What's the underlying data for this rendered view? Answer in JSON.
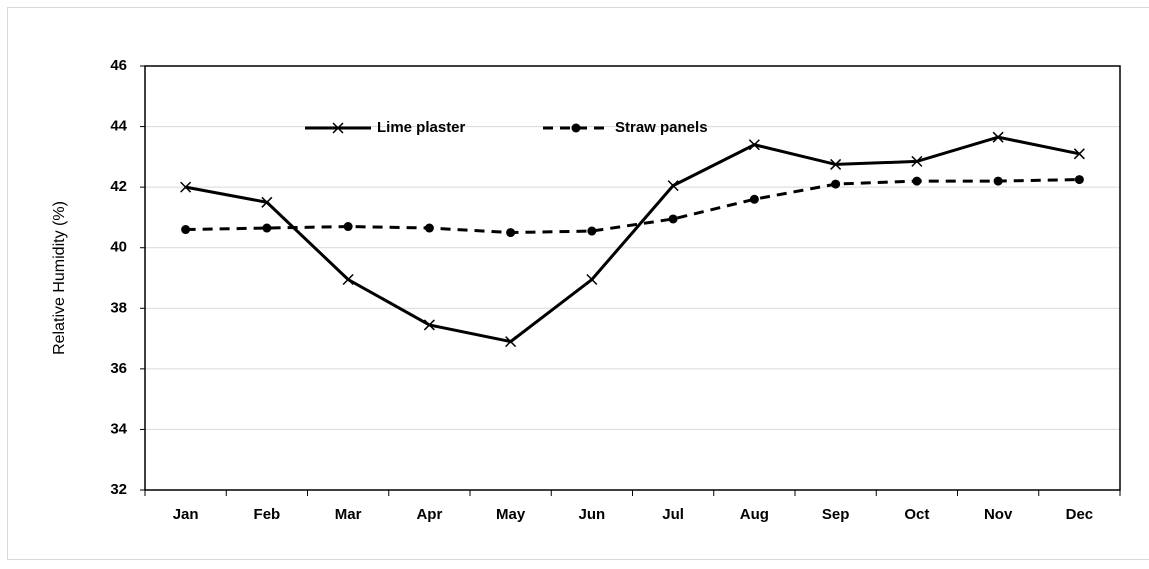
{
  "chart_data": {
    "type": "line",
    "y_label": "Relative Humidity (%)",
    "categories": [
      "Jan",
      "Feb",
      "Mar",
      "Apr",
      "May",
      "Jun",
      "Jul",
      "Aug",
      "Sep",
      "Oct",
      "Nov",
      "Dec"
    ],
    "series": [
      {
        "name": "Lime plaster",
        "color": "#000000",
        "linestyle": "solid",
        "marker": "x",
        "values": [
          42.0,
          41.5,
          38.95,
          37.45,
          36.9,
          38.95,
          42.05,
          43.4,
          42.75,
          42.85,
          43.65,
          43.1
        ]
      },
      {
        "name": "Straw panels",
        "color": "#000000",
        "linestyle": "dashed",
        "marker": "circle",
        "values": [
          40.6,
          40.65,
          40.7,
          40.65,
          40.5,
          40.55,
          40.95,
          41.6,
          42.1,
          42.2,
          42.2,
          42.25
        ]
      }
    ],
    "ylim": [
      32,
      46
    ],
    "yticks": [
      32,
      34,
      36,
      38,
      40,
      42,
      44,
      46
    ],
    "grid": true,
    "legend": "top"
  }
}
